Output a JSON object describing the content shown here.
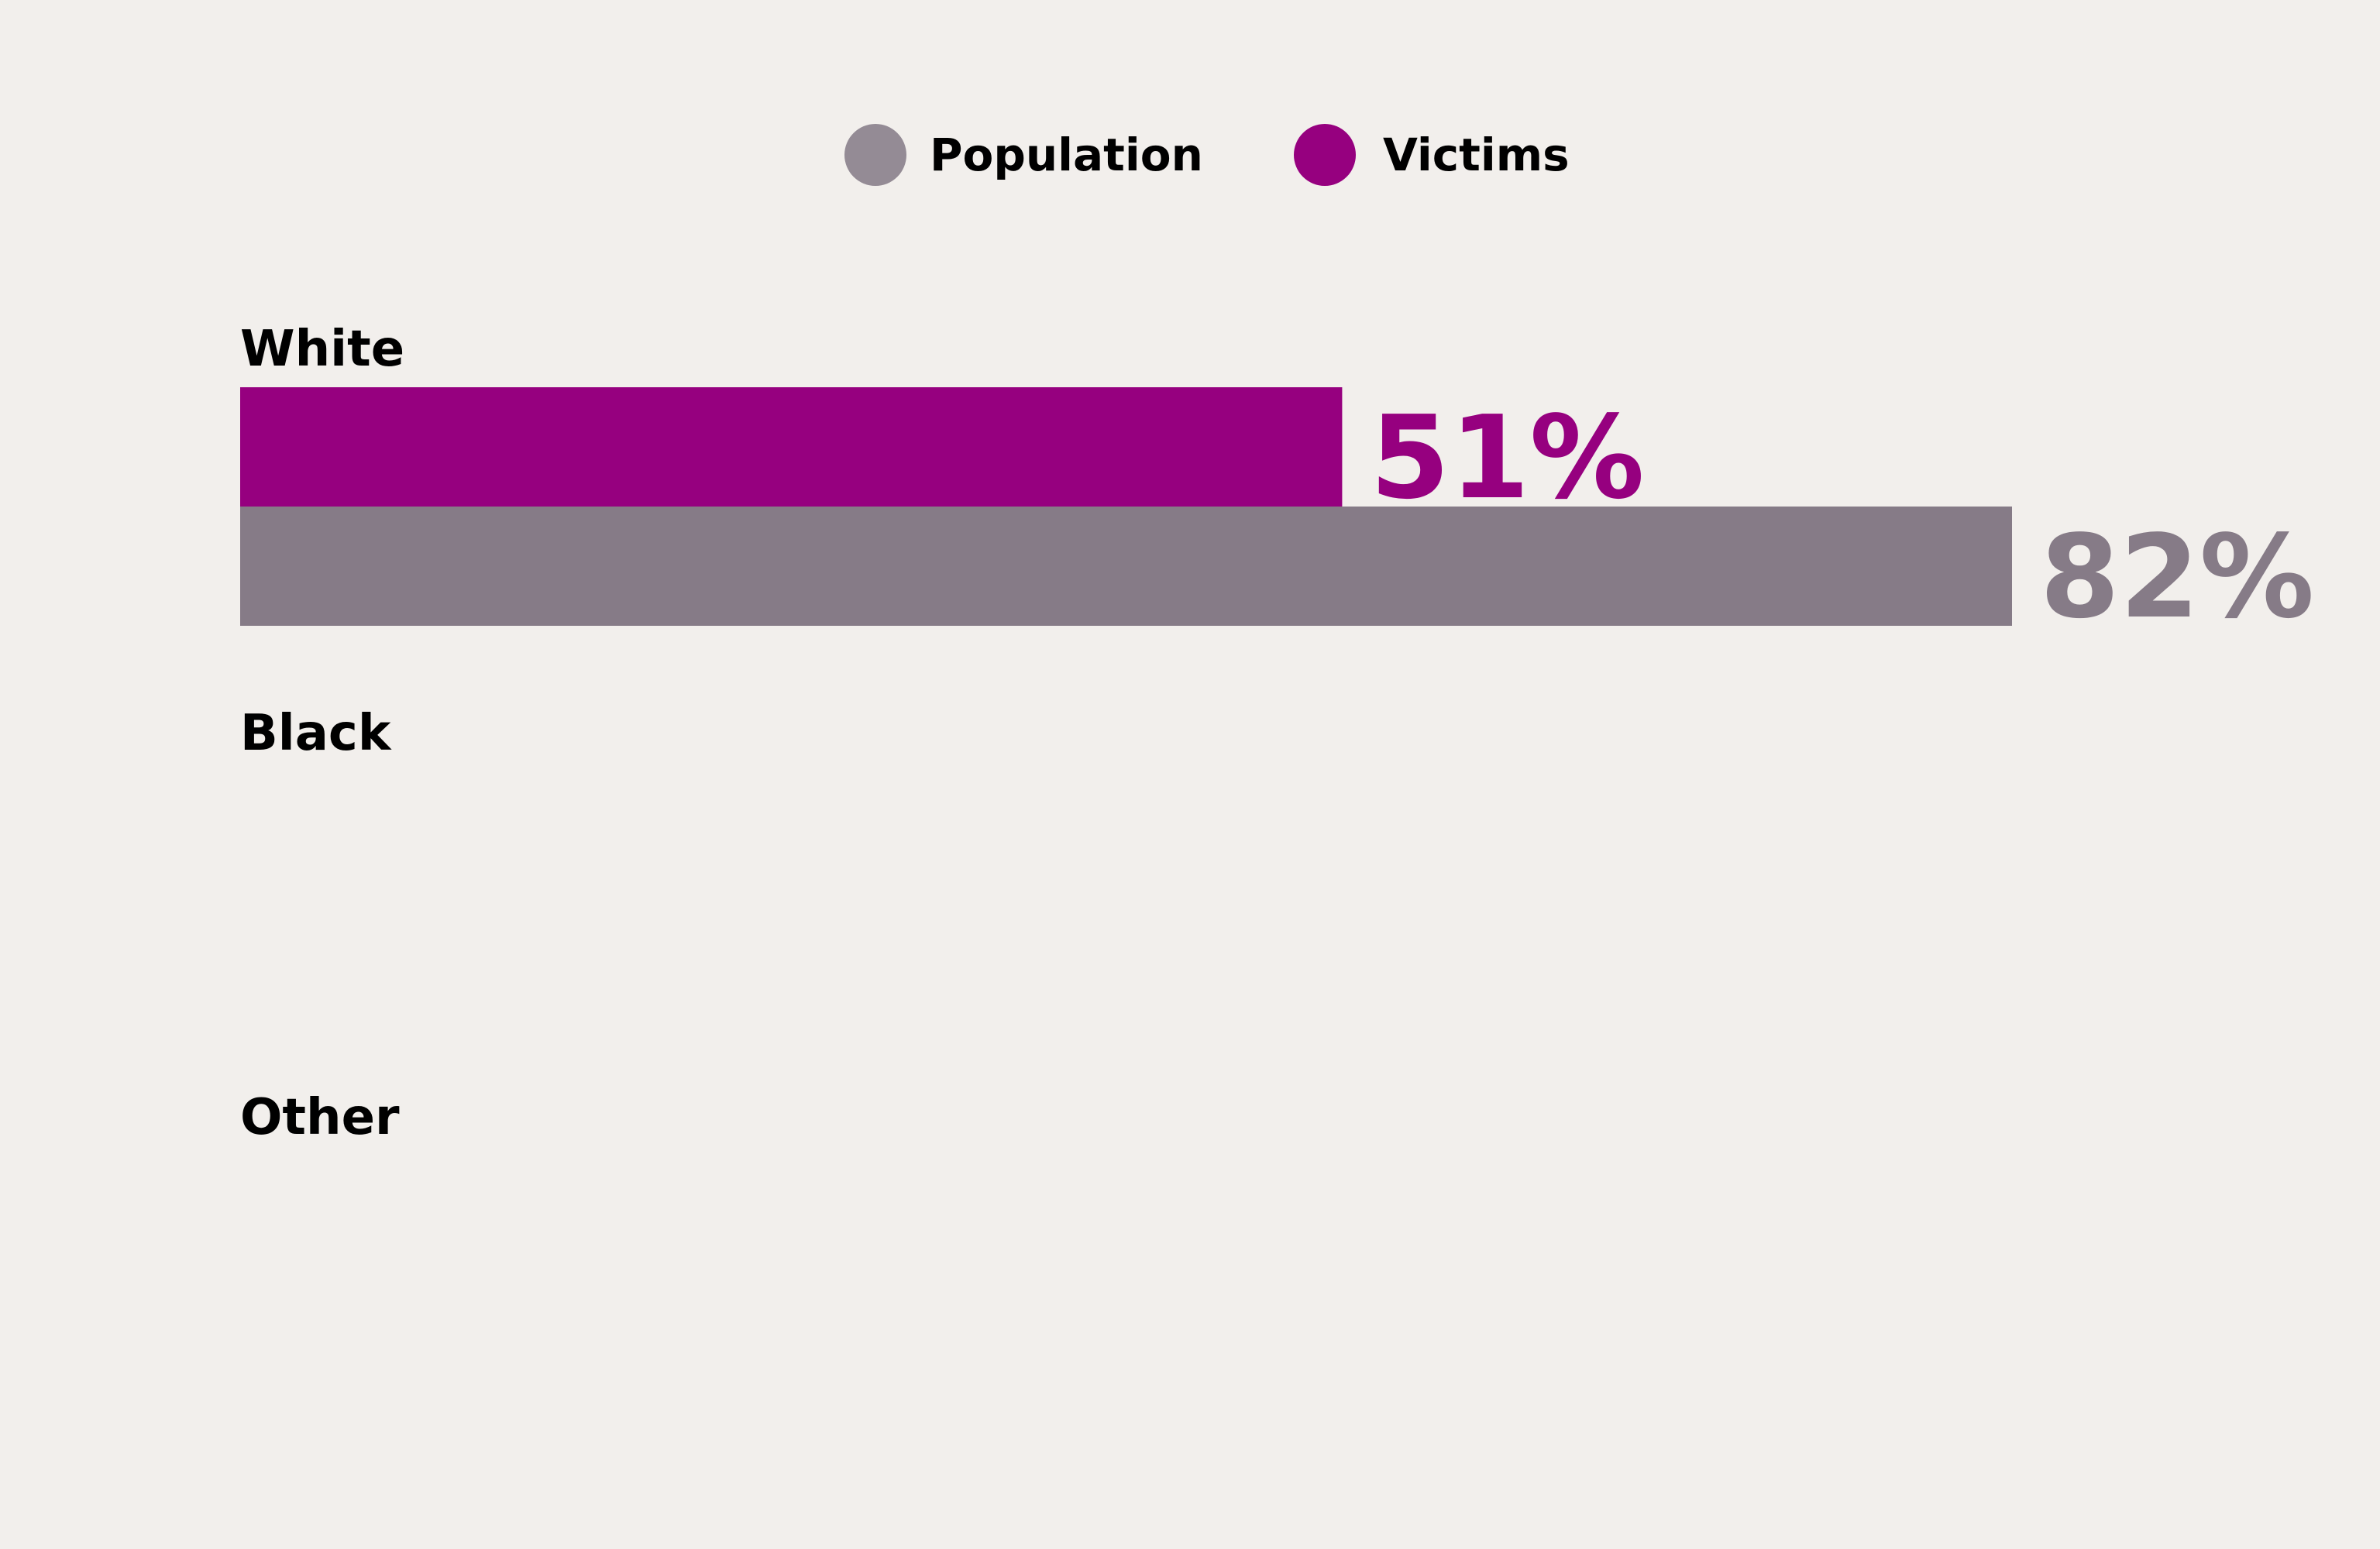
{
  "chart_data": {
    "type": "bar",
    "orientation": "horizontal",
    "categories": [
      "White",
      "Black",
      "Other"
    ],
    "series": [
      {
        "name": "Victims",
        "color": "#96007f",
        "values": [
          51,
          null,
          null
        ],
        "labels": [
          "51%",
          "",
          ""
        ]
      },
      {
        "name": "Population",
        "color": "#867b87",
        "values": [
          82,
          null,
          null
        ],
        "labels": [
          "82%",
          "",
          ""
        ]
      }
    ],
    "xlim": [
      0,
      100
    ],
    "unit": "%",
    "legend": {
      "position": "top-center",
      "items": [
        {
          "label": "Population",
          "color": "#948b95"
        },
        {
          "label": "Victims",
          "color": "#96007f"
        }
      ]
    },
    "grid": false,
    "title": "",
    "xlabel": "",
    "ylabel": ""
  }
}
